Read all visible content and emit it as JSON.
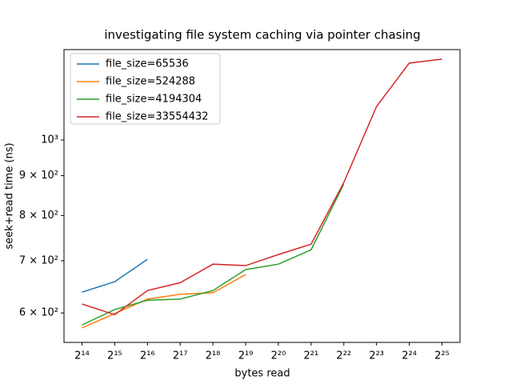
{
  "chart_data": {
    "type": "line",
    "title": "investigating file system caching via pointer chasing",
    "x_label": "bytes read",
    "y_label": "seek+read time (ns)",
    "x_scale": "log",
    "y_scale": "log",
    "legend": "upper left",
    "xlim": [
      11190,
      49125000
    ],
    "ylim": [
      550,
      1306
    ],
    "xticks": [
      {
        "value": 16384,
        "label": "2¹⁴"
      },
      {
        "value": 32768,
        "label": "2¹⁵"
      },
      {
        "value": 65536,
        "label": "2¹⁶"
      },
      {
        "value": 131072,
        "label": "2¹⁷"
      },
      {
        "value": 262144,
        "label": "2¹⁸"
      },
      {
        "value": 524288,
        "label": "2¹⁹"
      },
      {
        "value": 1048576,
        "label": "2²⁰"
      },
      {
        "value": 2097152,
        "label": "2²¹"
      },
      {
        "value": 4194304,
        "label": "2²²"
      },
      {
        "value": 8388608,
        "label": "2²³"
      },
      {
        "value": 16777216,
        "label": "2²⁴"
      },
      {
        "value": 33554432,
        "label": "2²⁵"
      }
    ],
    "yticks": [
      {
        "value": 600,
        "label": "6 × 10²"
      },
      {
        "value": 700,
        "label": "7 × 10²"
      },
      {
        "value": 800,
        "label": "8 × 10²"
      },
      {
        "value": 900,
        "label": "9 × 10²"
      },
      {
        "value": 1000,
        "label": "10³"
      }
    ],
    "x": [
      16384,
      32768,
      65536,
      131072,
      262144,
      524288,
      1048576,
      2097152,
      4194304,
      8388608,
      16777216,
      33554432
    ],
    "series": [
      {
        "name": "file_size=65536",
        "color": "#1f77b4",
        "values": [
          638,
          658,
          703,
          null,
          null,
          null,
          null,
          null,
          null,
          null,
          null,
          null
        ]
      },
      {
        "name": "file_size=524288",
        "color": "#ff7f0e",
        "values": [
          574,
          599,
          625,
          634,
          637,
          672,
          null,
          null,
          null,
          null,
          null,
          null
        ]
      },
      {
        "name": "file_size=4194304",
        "color": "#2ca02c",
        "values": [
          579,
          606,
          623,
          625,
          641,
          682,
          693,
          723,
          878,
          null,
          null,
          null
        ]
      },
      {
        "name": "file_size=33554432",
        "color": "#d62728",
        "values": [
          616,
          597,
          641,
          656,
          693,
          690,
          713,
          735,
          882,
          1104,
          1255,
          1270
        ]
      }
    ]
  }
}
